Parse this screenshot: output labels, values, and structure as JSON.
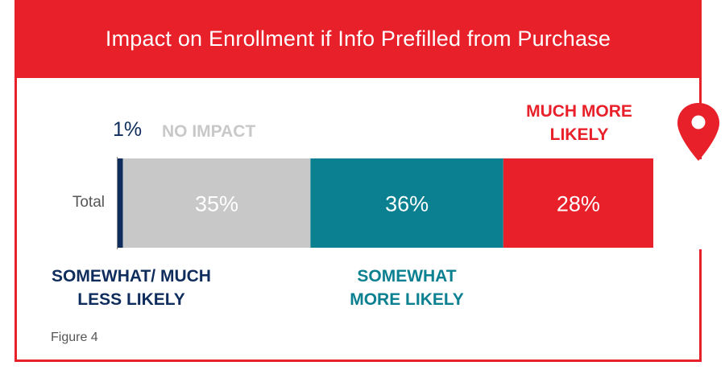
{
  "header": {
    "title": "Impact on Enrollment if Info Prefilled from Purchase"
  },
  "figure_label": "Figure 4",
  "colors": {
    "brand_red": "#e8202a",
    "navy": "#0e2d5c",
    "gray": "#c8c8c8",
    "teal": "#0b8091",
    "axis": "#888888",
    "text_gray": "#555555"
  },
  "icons": {
    "pin": "location-pin-icon"
  },
  "chart_data": {
    "type": "bar",
    "orientation": "horizontal",
    "stacked": true,
    "categories": [
      "Total"
    ],
    "xlim": [
      0,
      100
    ],
    "grid": false,
    "series": [
      {
        "name": "SOMEWHAT/ MUCH LESS LIKELY",
        "values": [
          1
        ],
        "value_label": "1%",
        "color": "#0e2d5c"
      },
      {
        "name": "NO IMPACT",
        "values": [
          35
        ],
        "value_label": "35%",
        "color": "#c8c8c8"
      },
      {
        "name": "SOMEWHAT MORE LIKELY",
        "values": [
          36
        ],
        "value_label": "36%",
        "color": "#0b8091"
      },
      {
        "name": "MUCH MORE LIKELY",
        "values": [
          28
        ],
        "value_label": "28%",
        "color": "#e8202a"
      }
    ],
    "annotations": {
      "less_pct": "1%",
      "no_impact": "NO IMPACT",
      "much_more": "MUCH MORE LIKELY",
      "less": "SOMEWHAT/ MUCH LESS LIKELY",
      "somewhat_more": "SOMEWHAT MORE LIKELY"
    }
  }
}
